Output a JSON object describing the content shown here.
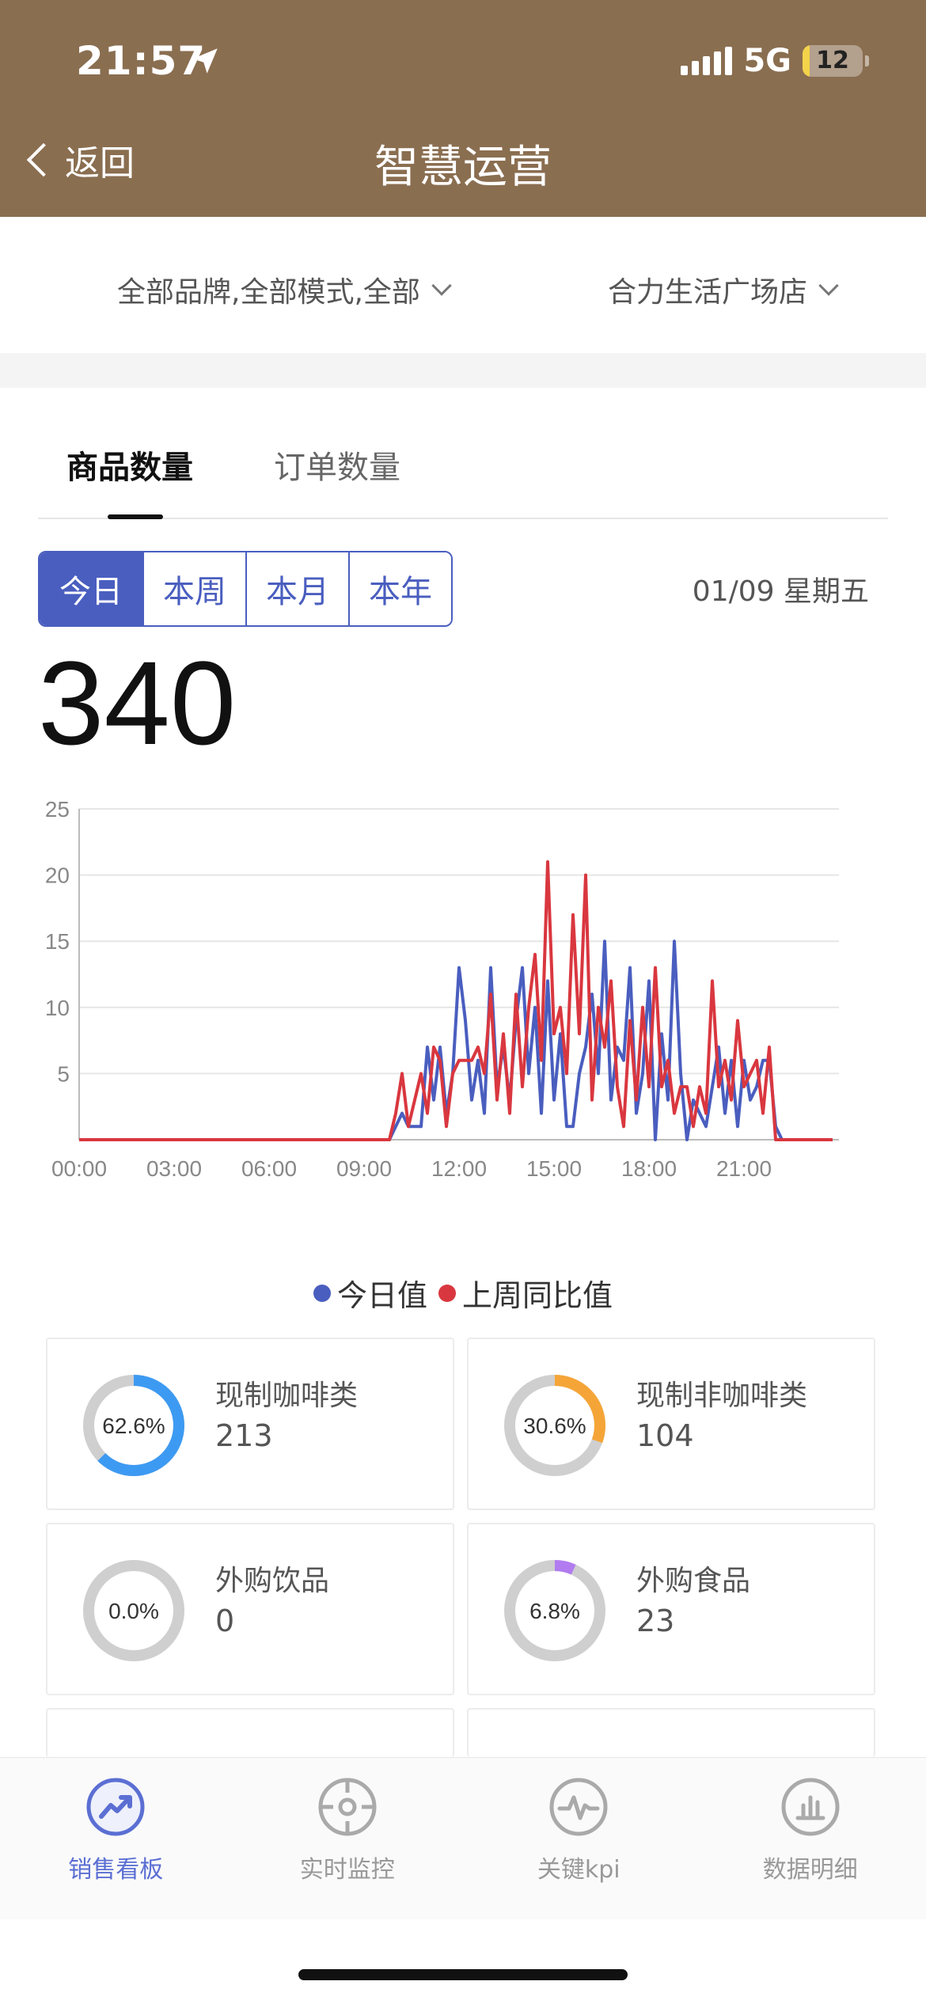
{
  "status_bar": {
    "time": "21:57",
    "network": "5G",
    "battery": "12",
    "battery_level": 0.12,
    "icons": [
      "location-arrow-icon",
      "signal-icon",
      "battery-icon"
    ]
  },
  "header": {
    "back_label": "返回",
    "title": "智慧运营",
    "background_color": "#8a6e50"
  },
  "filters": {
    "brand_mode": "全部品牌,全部模式,全部",
    "store": "合力生活广场店"
  },
  "tabs": [
    {
      "label": "商品数量",
      "active": true
    },
    {
      "label": "订单数量",
      "active": false
    }
  ],
  "periods": [
    {
      "label": "今日",
      "active": true
    },
    {
      "label": "本周",
      "active": false
    },
    {
      "label": "本月",
      "active": false
    },
    {
      "label": "本年",
      "active": false
    }
  ],
  "date": "01/09 星期五",
  "total": "340",
  "chart_data": {
    "type": "line",
    "x_tick_labels": [
      "00:00",
      "03:00",
      "06:00",
      "09:00",
      "12:00",
      "15:00",
      "18:00",
      "21:00"
    ],
    "xlim": [
      0,
      24
    ],
    "ylim": [
      0,
      25
    ],
    "y_ticks": [
      5,
      10,
      15,
      20,
      25
    ],
    "grid": true,
    "legend_position": "bottom-center",
    "series": [
      {
        "name": "今日值",
        "color": "#4a5ebf",
        "x": [
          0,
          9.8,
          10.0,
          10.2,
          10.4,
          10.6,
          10.8,
          11.0,
          11.2,
          11.4,
          11.6,
          11.8,
          12.0,
          12.2,
          12.4,
          12.6,
          12.8,
          13.0,
          13.2,
          13.4,
          13.6,
          13.8,
          14.0,
          14.2,
          14.4,
          14.6,
          14.8,
          15.0,
          15.2,
          15.4,
          15.6,
          15.8,
          16.0,
          16.2,
          16.4,
          16.6,
          16.8,
          17.0,
          17.2,
          17.4,
          17.6,
          17.8,
          18.0,
          18.2,
          18.4,
          18.6,
          18.8,
          19.0,
          19.2,
          19.4,
          19.6,
          19.8,
          20.0,
          20.2,
          20.4,
          20.6,
          20.8,
          21.0,
          21.2,
          21.4,
          21.6,
          21.8,
          22.0,
          22.2,
          23.8
        ],
        "values": [
          0,
          0,
          1,
          2,
          1,
          1,
          1,
          7,
          3,
          7,
          2,
          5,
          13,
          9,
          3,
          6,
          2,
          13,
          4,
          7,
          3,
          9,
          13,
          5,
          10,
          2,
          12,
          3,
          8,
          1,
          1,
          5,
          7,
          11,
          5,
          15,
          3,
          7,
          6,
          13,
          2,
          5,
          12,
          0,
          8,
          3,
          15,
          5,
          0,
          3,
          2,
          1,
          4,
          7,
          2,
          6,
          1,
          6,
          3,
          4,
          6,
          6,
          1,
          0,
          0
        ]
      },
      {
        "name": "上周同比值",
        "color": "#d9373f",
        "x": [
          0,
          9.8,
          10.0,
          10.2,
          10.4,
          10.6,
          10.8,
          11.0,
          11.2,
          11.4,
          11.6,
          11.8,
          12.0,
          12.2,
          12.4,
          12.6,
          12.8,
          13.0,
          13.2,
          13.4,
          13.6,
          13.8,
          14.0,
          14.2,
          14.4,
          14.6,
          14.8,
          15.0,
          15.2,
          15.4,
          15.6,
          15.8,
          16.0,
          16.2,
          16.4,
          16.6,
          16.8,
          17.0,
          17.2,
          17.4,
          17.6,
          17.8,
          18.0,
          18.2,
          18.4,
          18.6,
          18.8,
          19.0,
          19.2,
          19.4,
          19.6,
          19.8,
          20.0,
          20.2,
          20.4,
          20.6,
          20.8,
          21.0,
          21.2,
          21.4,
          21.6,
          21.8,
          22.0,
          22.2,
          23.8
        ],
        "values": [
          0,
          0,
          2,
          5,
          1,
          3,
          5,
          2,
          7,
          6,
          1,
          5,
          6,
          6,
          6,
          7,
          5,
          11,
          3,
          8,
          2,
          11,
          4,
          10,
          14,
          6,
          21,
          8,
          10,
          5,
          17,
          8,
          20,
          3,
          10,
          7,
          12,
          4,
          1,
          9,
          3,
          10,
          4,
          13,
          4,
          6,
          2,
          4,
          4,
          1,
          4,
          2,
          12,
          4,
          6,
          3,
          9,
          4,
          5,
          6,
          2,
          7,
          0,
          0,
          0
        ]
      }
    ]
  },
  "legend": {
    "today": "今日值",
    "last_week": "上周同比值"
  },
  "categories": [
    {
      "name": "现制咖啡类",
      "value": "213",
      "percent_label": "62.6%",
      "percent": 62.6,
      "color": "#3d9af2"
    },
    {
      "name": "现制非咖啡类",
      "value": "104",
      "percent_label": "30.6%",
      "percent": 30.6,
      "color": "#f5a537"
    },
    {
      "name": "外购饮品",
      "value": "0",
      "percent_label": "0.0%",
      "percent": 0.0,
      "color": "#a96ae8"
    },
    {
      "name": "外购食品",
      "value": "23",
      "percent_label": "6.8%",
      "percent": 6.8,
      "color": "#b27cf0"
    }
  ],
  "bottom_nav": [
    {
      "label": "销售看板",
      "icon": "trend-up-icon",
      "active": true
    },
    {
      "label": "实时监控",
      "icon": "target-icon",
      "active": false
    },
    {
      "label": "关键kpi",
      "icon": "pulse-icon",
      "active": false
    },
    {
      "label": "数据明细",
      "icon": "bar-chart-icon",
      "active": false
    }
  ]
}
